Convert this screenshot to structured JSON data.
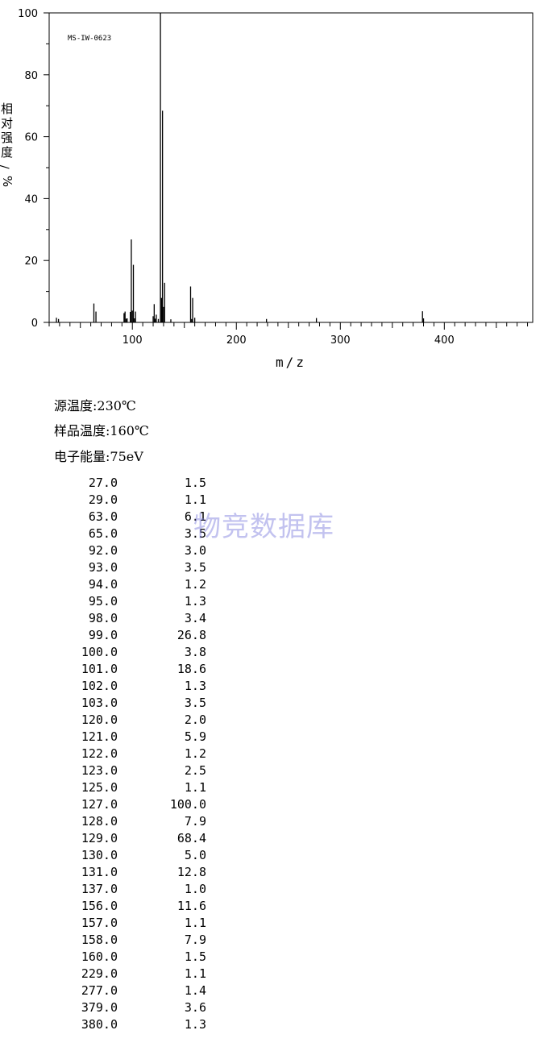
{
  "chart_data": {
    "type": "bar",
    "annotation": "MS-IW-0623",
    "xlabel": "m/z",
    "ylabel": "相对强度/%",
    "xlim": [
      20,
      485
    ],
    "ylim": [
      0,
      100
    ],
    "x_ticks": [
      100,
      200,
      300,
      400
    ],
    "y_ticks": [
      0,
      20,
      40,
      60,
      80,
      100
    ],
    "grid": false,
    "peaks": [
      {
        "mz": 27.0,
        "intensity": 1.5
      },
      {
        "mz": 29.0,
        "intensity": 1.1
      },
      {
        "mz": 63.0,
        "intensity": 6.1
      },
      {
        "mz": 65.0,
        "intensity": 3.5
      },
      {
        "mz": 92.0,
        "intensity": 3.0
      },
      {
        "mz": 93.0,
        "intensity": 3.5
      },
      {
        "mz": 94.0,
        "intensity": 1.2
      },
      {
        "mz": 95.0,
        "intensity": 1.3
      },
      {
        "mz": 98.0,
        "intensity": 3.4
      },
      {
        "mz": 99.0,
        "intensity": 26.8
      },
      {
        "mz": 100.0,
        "intensity": 3.8
      },
      {
        "mz": 101.0,
        "intensity": 18.6
      },
      {
        "mz": 102.0,
        "intensity": 1.3
      },
      {
        "mz": 103.0,
        "intensity": 3.5
      },
      {
        "mz": 120.0,
        "intensity": 2.0
      },
      {
        "mz": 121.0,
        "intensity": 5.9
      },
      {
        "mz": 122.0,
        "intensity": 1.2
      },
      {
        "mz": 123.0,
        "intensity": 2.5
      },
      {
        "mz": 125.0,
        "intensity": 1.1
      },
      {
        "mz": 127.0,
        "intensity": 100.0
      },
      {
        "mz": 128.0,
        "intensity": 7.9
      },
      {
        "mz": 129.0,
        "intensity": 68.4
      },
      {
        "mz": 130.0,
        "intensity": 5.0
      },
      {
        "mz": 131.0,
        "intensity": 12.8
      },
      {
        "mz": 137.0,
        "intensity": 1.0
      },
      {
        "mz": 156.0,
        "intensity": 11.6
      },
      {
        "mz": 157.0,
        "intensity": 1.1
      },
      {
        "mz": 158.0,
        "intensity": 7.9
      },
      {
        "mz": 160.0,
        "intensity": 1.5
      },
      {
        "mz": 229.0,
        "intensity": 1.1
      },
      {
        "mz": 277.0,
        "intensity": 1.4
      },
      {
        "mz": 379.0,
        "intensity": 3.6
      },
      {
        "mz": 380.0,
        "intensity": 1.3
      }
    ]
  },
  "info": {
    "source_temp": "源温度:230℃",
    "sample_temp": "样品温度:160℃",
    "electron_energy": "电子能量:75eV"
  },
  "peak_table": [
    {
      "mz": "27.0",
      "intensity": "1.5"
    },
    {
      "mz": "29.0",
      "intensity": "1.1"
    },
    {
      "mz": "63.0",
      "intensity": "6.1"
    },
    {
      "mz": "65.0",
      "intensity": "3.5"
    },
    {
      "mz": "92.0",
      "intensity": "3.0"
    },
    {
      "mz": "93.0",
      "intensity": "3.5"
    },
    {
      "mz": "94.0",
      "intensity": "1.2"
    },
    {
      "mz": "95.0",
      "intensity": "1.3"
    },
    {
      "mz": "98.0",
      "intensity": "3.4"
    },
    {
      "mz": "99.0",
      "intensity": "26.8"
    },
    {
      "mz": "100.0",
      "intensity": "3.8"
    },
    {
      "mz": "101.0",
      "intensity": "18.6"
    },
    {
      "mz": "102.0",
      "intensity": "1.3"
    },
    {
      "mz": "103.0",
      "intensity": "3.5"
    },
    {
      "mz": "120.0",
      "intensity": "2.0"
    },
    {
      "mz": "121.0",
      "intensity": "5.9"
    },
    {
      "mz": "122.0",
      "intensity": "1.2"
    },
    {
      "mz": "123.0",
      "intensity": "2.5"
    },
    {
      "mz": "125.0",
      "intensity": "1.1"
    },
    {
      "mz": "127.0",
      "intensity": "100.0"
    },
    {
      "mz": "128.0",
      "intensity": "7.9"
    },
    {
      "mz": "129.0",
      "intensity": "68.4"
    },
    {
      "mz": "130.0",
      "intensity": "5.0"
    },
    {
      "mz": "131.0",
      "intensity": "12.8"
    },
    {
      "mz": "137.0",
      "intensity": "1.0"
    },
    {
      "mz": "156.0",
      "intensity": "11.6"
    },
    {
      "mz": "157.0",
      "intensity": "1.1"
    },
    {
      "mz": "158.0",
      "intensity": "7.9"
    },
    {
      "mz": "160.0",
      "intensity": "1.5"
    },
    {
      "mz": "229.0",
      "intensity": "1.1"
    },
    {
      "mz": "277.0",
      "intensity": "1.4"
    },
    {
      "mz": "379.0",
      "intensity": "3.6"
    },
    {
      "mz": "380.0",
      "intensity": "1.3"
    }
  ],
  "watermark": "物竞数据库"
}
